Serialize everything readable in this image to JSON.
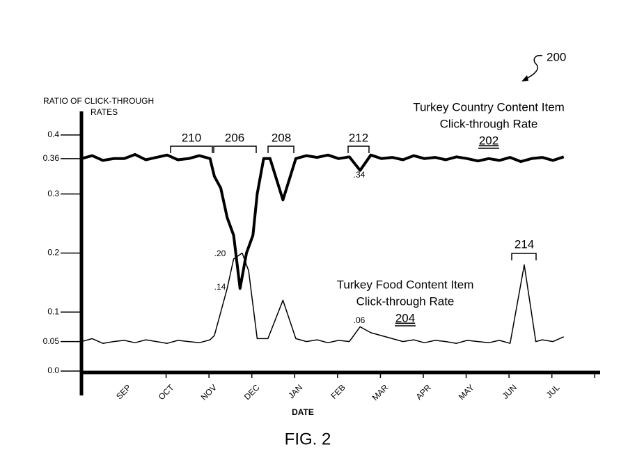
{
  "chart_data": {
    "type": "line",
    "figure_ref": "200",
    "caption": "FIG. 2",
    "y_label_lines": [
      "RATIO OF CLICK-THROUGH",
      "RATES"
    ],
    "x_label": "DATE",
    "categories": [
      "SEP",
      "OCT",
      "NOV",
      "DEC",
      "JAN",
      "FEB",
      "MAR",
      "APR",
      "MAY",
      "JUN",
      "JUL"
    ],
    "xlim": [
      0,
      12.1
    ],
    "ylim": [
      0,
      0.44
    ],
    "yticks": [
      {
        "value": 0,
        "label": "0.0"
      },
      0.05,
      0.1,
      0.2,
      0.3,
      0.36,
      0.4
    ],
    "series": [
      {
        "label_lines": [
          "Turkey Country Content Item",
          "Click-through Rate"
        ],
        "ref": "202",
        "color": "#000000",
        "line_width": 4,
        "x": [
          0,
          0.25,
          0.5,
          0.75,
          1,
          1.25,
          1.5,
          1.75,
          2,
          2.25,
          2.5,
          2.75,
          3,
          3.1,
          3.25,
          3.4,
          3.55,
          3.7,
          3.85,
          4,
          4.1,
          4.25,
          4.4,
          4.7,
          5,
          5.25,
          5.5,
          5.75,
          6,
          6.25,
          6.5,
          6.75,
          7,
          7.25,
          7.5,
          7.75,
          8,
          8.25,
          8.5,
          8.75,
          9,
          9.25,
          9.5,
          9.75,
          10,
          10.25,
          10.5,
          10.75,
          11,
          11.25
        ],
        "values": [
          0.36,
          0.365,
          0.357,
          0.36,
          0.36,
          0.367,
          0.358,
          0.362,
          0.366,
          0.358,
          0.36,
          0.365,
          0.36,
          0.33,
          0.31,
          0.26,
          0.23,
          0.14,
          0.2,
          0.23,
          0.3,
          0.36,
          0.36,
          0.29,
          0.36,
          0.365,
          0.362,
          0.366,
          0.36,
          0.363,
          0.34,
          0.366,
          0.36,
          0.362,
          0.358,
          0.365,
          0.36,
          0.362,
          0.358,
          0.363,
          0.36,
          0.356,
          0.36,
          0.357,
          0.362,
          0.355,
          0.36,
          0.362,
          0.357,
          0.363
        ]
      },
      {
        "label_lines": [
          "Turkey Food Content Item",
          "Click-through Rate"
        ],
        "ref": "204",
        "color": "#000000",
        "line_width": 1.5,
        "x": [
          0,
          0.25,
          0.5,
          0.75,
          1,
          1.25,
          1.5,
          1.75,
          2,
          2.25,
          2.5,
          2.75,
          3,
          3.1,
          3.25,
          3.4,
          3.55,
          3.75,
          3.9,
          4.1,
          4.35,
          4.7,
          5,
          5.25,
          5.5,
          5.75,
          6,
          6.25,
          6.5,
          6.75,
          7,
          7.25,
          7.5,
          7.75,
          8,
          8.25,
          8.5,
          8.75,
          9,
          9.25,
          9.5,
          9.75,
          10,
          10.33,
          10.6,
          10.75,
          11,
          11.25
        ],
        "values": [
          0.05,
          0.055,
          0.047,
          0.05,
          0.052,
          0.048,
          0.053,
          0.05,
          0.047,
          0.052,
          0.05,
          0.048,
          0.053,
          0.06,
          0.1,
          0.14,
          0.19,
          0.2,
          0.17,
          0.055,
          0.055,
          0.12,
          0.055,
          0.05,
          0.053,
          0.048,
          0.052,
          0.05,
          0.075,
          0.065,
          0.06,
          0.055,
          0.05,
          0.053,
          0.048,
          0.052,
          0.05,
          0.047,
          0.052,
          0.05,
          0.048,
          0.052,
          0.047,
          0.18,
          0.05,
          0.053,
          0.05,
          0.058
        ]
      }
    ],
    "annotations": [
      {
        "text": "210"
      },
      {
        "text": "206"
      },
      {
        "text": "208"
      },
      {
        "text": "212"
      },
      {
        "text": "214"
      },
      {
        "text": ".34"
      },
      {
        "text": ".06"
      },
      {
        "text": ".20"
      },
      {
        "text": ".14"
      }
    ]
  }
}
